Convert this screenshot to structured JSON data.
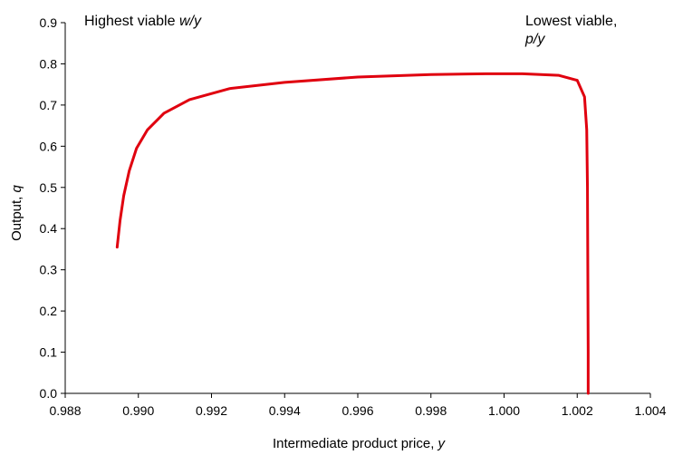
{
  "chart_data": {
    "type": "line",
    "title": "",
    "xlabel": {
      "text": "Intermediate product price, ",
      "var": "y"
    },
    "ylabel": {
      "text": "Output, ",
      "var": "q"
    },
    "xlim": [
      0.988,
      1.004
    ],
    "ylim": [
      0.0,
      0.9
    ],
    "x_ticks": [
      "0.988",
      "0.990",
      "0.992",
      "0.994",
      "0.996",
      "0.998",
      "1.000",
      "1.002",
      "1.004"
    ],
    "y_ticks": [
      "0.0",
      "0.1",
      "0.2",
      "0.3",
      "0.4",
      "0.5",
      "0.6",
      "0.7",
      "0.8",
      "0.9"
    ],
    "grid": false,
    "legend": "none",
    "series_color": "#e0000f",
    "annotations": [
      {
        "lines": [
          [
            {
              "t": "Highest viable "
            },
            {
              "t": "w/y",
              "italic": true
            }
          ]
        ]
      },
      {
        "lines": [
          [
            {
              "t": "Lowest viable,"
            }
          ],
          [
            {
              "t": "p/y",
              "italic": true
            }
          ]
        ]
      }
    ],
    "series": [
      {
        "x": [
          0.98942,
          0.9895,
          0.9896,
          0.98975,
          0.98995,
          0.99025,
          0.9907,
          0.9914,
          0.9925,
          0.994,
          0.996,
          0.998,
          0.9995,
          1.0005,
          1.0015,
          1.002,
          1.0022,
          1.00226,
          1.00228,
          1.00229,
          1.0023,
          1.0023
        ],
        "y": [
          0.355,
          0.42,
          0.48,
          0.54,
          0.595,
          0.64,
          0.68,
          0.713,
          0.74,
          0.755,
          0.768,
          0.774,
          0.776,
          0.776,
          0.772,
          0.76,
          0.72,
          0.64,
          0.5,
          0.3,
          0.1,
          0.0
        ]
      }
    ]
  }
}
